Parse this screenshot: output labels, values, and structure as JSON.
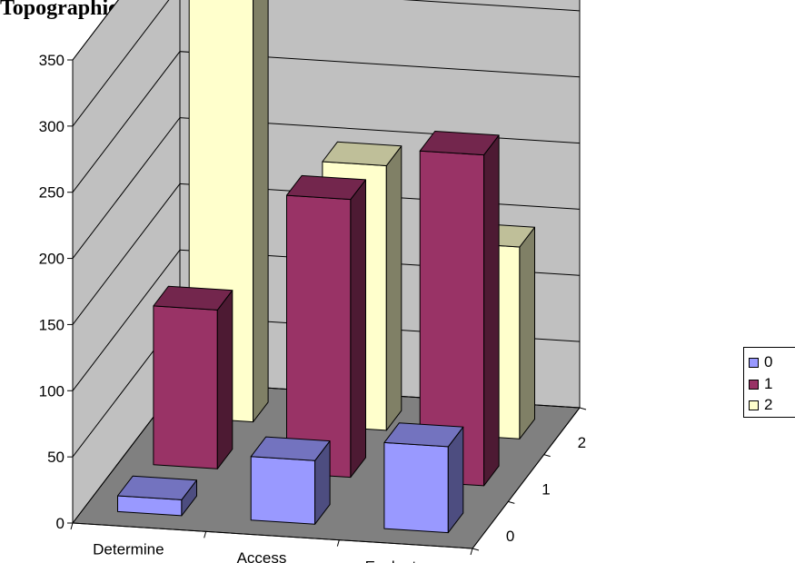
{
  "title": "Topographic",
  "chart_data": {
    "type": "bar",
    "categories": [
      "Determine",
      "Access",
      "Evaluate"
    ],
    "series": [
      {
        "name": "0",
        "values": [
          12,
          48,
          65
        ],
        "color": "#9999ff"
      },
      {
        "name": "1",
        "values": [
          120,
          210,
          250
        ],
        "color": "#993366"
      },
      {
        "name": "2",
        "values": [
          340,
          200,
          145
        ],
        "color": "#ffffcc"
      }
    ],
    "depth_labels": [
      "0",
      "1",
      "2"
    ],
    "y_ticks": [
      "0",
      "50",
      "100",
      "150",
      "200",
      "250",
      "300",
      "350"
    ],
    "ylim": [
      0,
      350
    ],
    "grid": true,
    "legend": "right"
  }
}
